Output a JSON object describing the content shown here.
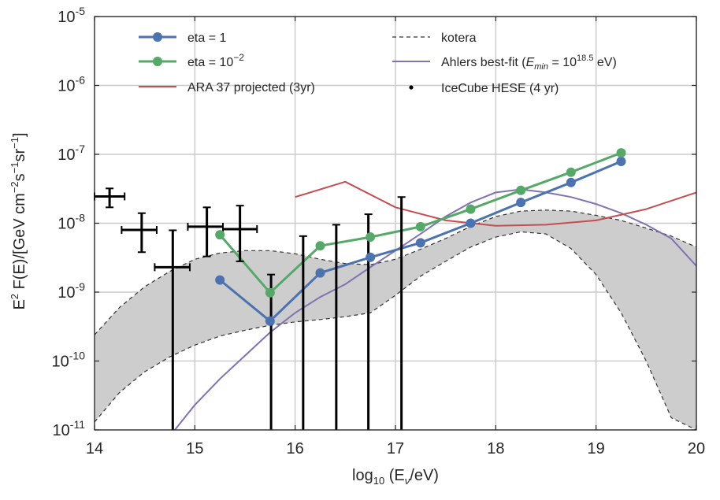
{
  "chart_data": {
    "type": "line",
    "xlabel": "log10 (Eν/eV)",
    "ylabel": "E² F(E)/[GeV cm⁻²s⁻¹sr⁻¹]",
    "xlim": [
      14,
      20
    ],
    "ylim_log10": [
      -11,
      -5
    ],
    "yscale": "log",
    "grid": true,
    "x_ticks": [
      "14",
      "15",
      "16",
      "17",
      "18",
      "19",
      "20"
    ],
    "y_ticks": [
      {
        "base": "10",
        "exp": "-11"
      },
      {
        "base": "10",
        "exp": "-10"
      },
      {
        "base": "10",
        "exp": "-9"
      },
      {
        "base": "10",
        "exp": "-8"
      },
      {
        "base": "10",
        "exp": "-7"
      },
      {
        "base": "10",
        "exp": "-6"
      },
      {
        "base": "10",
        "exp": "-5"
      }
    ],
    "legend_position": "top",
    "series": [
      {
        "name": "eta = 1",
        "color": "#4c72b0",
        "marker": "circle",
        "x": [
          15.25,
          15.75,
          16.25,
          16.75,
          17.25,
          17.75,
          18.25,
          18.75,
          19.25
        ],
        "y": [
          1.5e-09,
          3.8e-10,
          1.9e-09,
          3.2e-09,
          5.2e-09,
          1e-08,
          2e-08,
          3.9e-08,
          7.9e-08
        ]
      },
      {
        "name": "eta = 10^-2",
        "color": "#55a868",
        "marker": "circle",
        "x": [
          15.25,
          15.75,
          16.25,
          16.75,
          17.25,
          17.75,
          18.25,
          18.75,
          19.25
        ],
        "y": [
          6.8e-09,
          9.8e-10,
          4.7e-09,
          6.3e-09,
          8.9e-09,
          1.6e-08,
          3e-08,
          5.5e-08,
          1.05e-07
        ]
      },
      {
        "name": "ARA 37 projected (3yr)",
        "color": "#c44e52",
        "x": [
          16.0,
          16.5,
          17.0,
          17.5,
          18.0,
          18.5,
          19.0,
          19.5,
          20.0
        ],
        "y": [
          2.4e-08,
          4e-08,
          1.7e-08,
          1.1e-08,
          9.2e-09,
          9.5e-09,
          1.1e-08,
          1.6e-08,
          2.8e-08
        ]
      },
      {
        "name": "kotera",
        "color": "#333333",
        "dashed": true,
        "band": true,
        "x": [
          14.0,
          14.25,
          14.5,
          14.75,
          15.0,
          15.25,
          15.5,
          15.75,
          16.0,
          16.25,
          16.5,
          16.75,
          17.0,
          17.25,
          17.5,
          17.75,
          18.0,
          18.25,
          18.5,
          18.75,
          19.0,
          19.25,
          19.5,
          19.75,
          20.0
        ],
        "upper": [
          2.4e-10,
          6e-10,
          1.2e-09,
          2e-09,
          3e-09,
          3.7e-09,
          4e-09,
          4e-09,
          3.6e-09,
          3e-09,
          2.6e-09,
          2.5e-09,
          3e-09,
          4.2e-09,
          6e-09,
          9e-09,
          1.25e-08,
          1.5e-08,
          1.55e-08,
          1.5e-08,
          1.3e-08,
          1.1e-08,
          8.5e-09,
          6.5e-09,
          4.5e-09
        ],
        "lower": [
          1.3e-11,
          3.5e-11,
          7e-11,
          1.15e-10,
          1.7e-10,
          2.3e-10,
          2.8e-10,
          3.3e-10,
          3.7e-10,
          4e-10,
          4.4e-10,
          5e-10,
          9e-10,
          1.7e-09,
          2.8e-09,
          4.5e-09,
          6.3e-09,
          7.5e-09,
          7e-09,
          4.3e-09,
          1.8e-09,
          5e-10,
          1e-10,
          1.5e-11,
          1e-12
        ]
      },
      {
        "name": "Ahlers best-fit",
        "legend_math": "(E_min = 10^18.5 eV)",
        "color": "#8172b2",
        "x": [
          14.8,
          15.0,
          15.25,
          15.5,
          15.75,
          16.0,
          16.25,
          16.5,
          16.75,
          17.0,
          17.25,
          17.5,
          17.75,
          18.0,
          18.25,
          18.5,
          18.75,
          19.0,
          19.25,
          19.5,
          19.75,
          20.0
        ],
        "y": [
          1e-11,
          2.3e-11,
          5.5e-11,
          1.2e-10,
          2.6e-10,
          5e-10,
          8.5e-10,
          1.3e-09,
          2.3e-09,
          4e-09,
          7e-09,
          1.25e-08,
          2e-08,
          2.8e-08,
          3.1e-08,
          2.8e-08,
          2.4e-08,
          1.9e-08,
          1.4e-08,
          9.5e-09,
          6e-09,
          2.4e-09
        ]
      },
      {
        "name": "IceCube HESE (4 yr)",
        "color": "#000000",
        "type": "errorbar",
        "points": [
          {
            "x": 14.15,
            "y": 2.45e-08,
            "xerr": [
              14.0,
              14.3
            ],
            "yerr": [
              1.7e-08,
              3.2e-08
            ]
          },
          {
            "x": 14.47,
            "y": 8e-09,
            "xerr": [
              14.27,
              14.62
            ],
            "yerr": [
              3.8e-09,
              1.4e-08
            ]
          },
          {
            "x": 14.78,
            "y": 2.3e-09,
            "xerr": [
              14.6,
              14.95
            ],
            "yerr": [
              1e-11,
              7.9e-09
            ]
          },
          {
            "x": 15.12,
            "y": 8.9e-09,
            "xerr": [
              14.93,
              15.28
            ],
            "yerr": [
              3.3e-09,
              1.7e-08
            ]
          },
          {
            "x": 15.45,
            "y": 8.2e-09,
            "xerr": [
              15.28,
              15.62
            ],
            "yerr": [
              2.8e-09,
              1.8e-08
            ]
          },
          {
            "x": 15.76,
            "yerr": [
              1e-11,
              1.8e-09
            ]
          },
          {
            "x": 16.08,
            "yerr": [
              1e-11,
              6.5e-09
            ]
          },
          {
            "x": 16.41,
            "yerr": [
              1e-11,
              9.5e-09
            ]
          },
          {
            "x": 16.73,
            "yerr": [
              1e-11,
              1.35e-08
            ]
          },
          {
            "x": 17.06,
            "yerr": [
              1e-11,
              2.4e-08
            ]
          }
        ]
      }
    ]
  }
}
